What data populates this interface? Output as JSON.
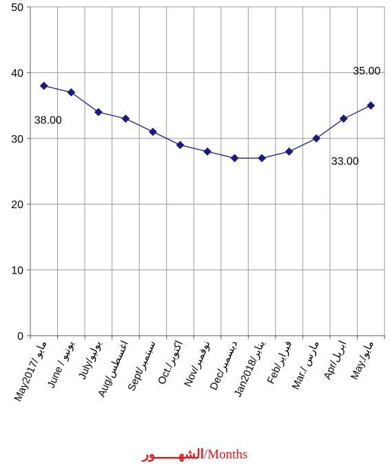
{
  "chart_data": {
    "type": "line",
    "categories": [
      "May2017/ مايو",
      "June / يونيو",
      "July/يوليو",
      "Aug/اغسطس",
      "Sept/سبتمبر",
      "Oct./اكتوبر",
      "Nov/نوفمبر",
      "Dec/ديسمبر",
      "Jan2018/يناير",
      "Feb/فبراير",
      "Mar./ مارس",
      "Apr/ابريل",
      "May./مايو"
    ],
    "series": [
      {
        "values": [
          38,
          37,
          34,
          33,
          31,
          29,
          28,
          27,
          27,
          28,
          30,
          33,
          35
        ],
        "color": "#1a1a80"
      }
    ],
    "data_labels": [
      {
        "index": 0,
        "text": "38.00"
      },
      {
        "index": 11,
        "text": "33.00"
      },
      {
        "index": 12,
        "text": "35.00"
      }
    ],
    "ylim": [
      0,
      50
    ],
    "yticks": [
      0,
      10,
      20,
      30,
      40,
      50
    ],
    "grid": true,
    "xlabel": {
      "arabic": "الشهــــــور",
      "english": "/Months"
    }
  }
}
